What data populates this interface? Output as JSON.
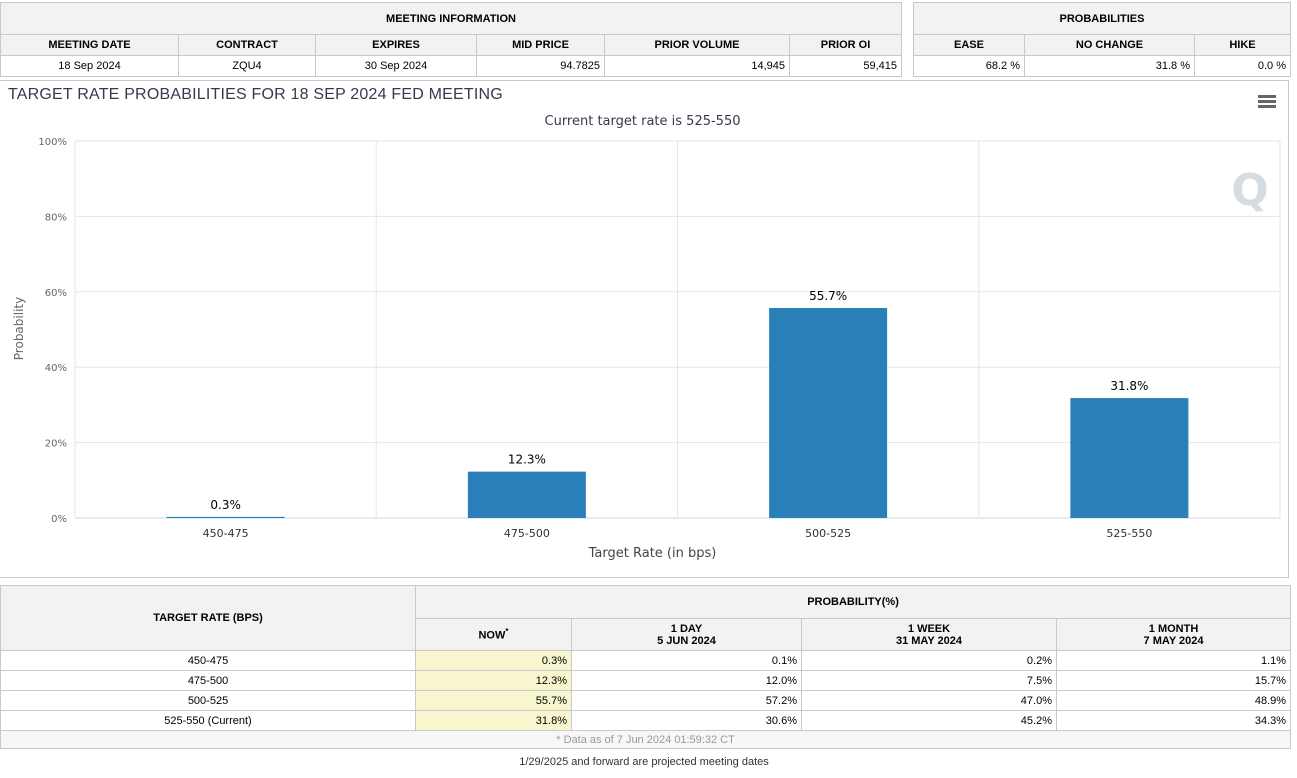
{
  "meeting_info": {
    "section_title": "MEETING INFORMATION",
    "headers": [
      "MEETING DATE",
      "CONTRACT",
      "EXPIRES",
      "MID PRICE",
      "PRIOR VOLUME",
      "PRIOR OI"
    ],
    "values": [
      "18 Sep 2024",
      "ZQU4",
      "30 Sep 2024",
      "94.7825",
      "14,945",
      "59,415"
    ]
  },
  "probabilities": {
    "section_title": "PROBABILITIES",
    "headers": [
      "EASE",
      "NO CHANGE",
      "HIKE"
    ],
    "values": [
      "68.2 %",
      "31.8 %",
      "0.0 %"
    ]
  },
  "chart_data": {
    "type": "bar",
    "title": "TARGET RATE PROBABILITIES FOR 18 SEP 2024 FED MEETING",
    "subtitle": "Current target rate is 525-550",
    "xlabel": "Target Rate (in bps)",
    "ylabel": "Probability",
    "categories": [
      "450-475",
      "475-500",
      "500-525",
      "525-550"
    ],
    "values": [
      0.3,
      12.3,
      55.7,
      31.8
    ],
    "data_labels": [
      "0.3%",
      "12.3%",
      "55.7%",
      "31.8%"
    ],
    "ylim": [
      0,
      100
    ],
    "yticks": [
      0,
      20,
      40,
      60,
      80,
      100
    ],
    "ytick_labels": [
      "0%",
      "20%",
      "40%",
      "60%",
      "80%",
      "100%"
    ],
    "bar_color": "#2980b9",
    "grid": true,
    "watermark": "Q"
  },
  "prob_table": {
    "target_rate_header": "TARGET RATE (BPS)",
    "probability_header": "PROBABILITY(%)",
    "now_header": "NOW",
    "now_marker": "*",
    "columns": [
      {
        "line1": "1 DAY",
        "line2": "5 JUN 2024"
      },
      {
        "line1": "1 WEEK",
        "line2": "31 MAY 2024"
      },
      {
        "line1": "1 MONTH",
        "line2": "7 MAY 2024"
      }
    ],
    "rows": [
      {
        "rate": "450-475",
        "now": "0.3%",
        "day": "0.1%",
        "week": "0.2%",
        "month": "1.1%"
      },
      {
        "rate": "475-500",
        "now": "12.3%",
        "day": "12.0%",
        "week": "7.5%",
        "month": "15.7%"
      },
      {
        "rate": "500-525",
        "now": "55.7%",
        "day": "57.2%",
        "week": "47.0%",
        "month": "48.9%"
      },
      {
        "rate": "525-550 (Current)",
        "now": "31.8%",
        "day": "30.6%",
        "week": "45.2%",
        "month": "34.3%"
      }
    ],
    "footnote": "* Data as of 7 Jun 2024 01:59:32 CT"
  },
  "projected_note": "1/29/2025 and forward are projected meeting dates"
}
